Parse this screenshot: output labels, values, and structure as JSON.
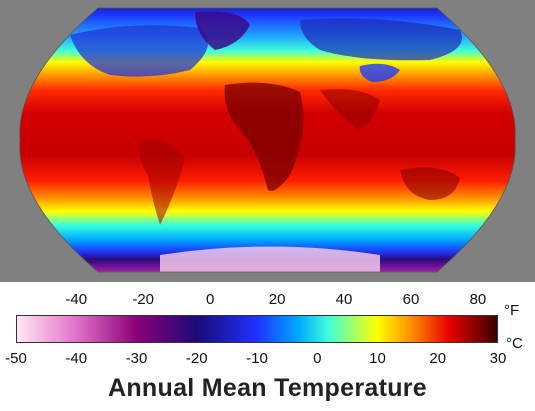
{
  "map": {
    "projection": "Robinson",
    "variable": "annual mean surface temperature",
    "background_color": "#808080"
  },
  "legend": {
    "title": "Annual Mean Temperature",
    "fahrenheit_unit": "°F",
    "celsius_unit": "°C",
    "fahrenheit_ticks": [
      "-40",
      "-20",
      "0",
      "20",
      "40",
      "60",
      "80"
    ],
    "celsius_ticks": [
      "-50",
      "-40",
      "-30",
      "-20",
      "-10",
      "0",
      "10",
      "20",
      "30"
    ],
    "colorbar_stops": [
      {
        "celsius": -50,
        "color": "#ffe6f5"
      },
      {
        "celsius": -40,
        "color": "#e070c8"
      },
      {
        "celsius": -30,
        "color": "#8a0078"
      },
      {
        "celsius": -20,
        "color": "#1c0a78"
      },
      {
        "celsius": -10,
        "color": "#1e32ff"
      },
      {
        "celsius": -3,
        "color": "#00aaff"
      },
      {
        "celsius": 2,
        "color": "#40ffd8"
      },
      {
        "celsius": 10,
        "color": "#ffff00"
      },
      {
        "celsius": 16,
        "color": "#ff8800"
      },
      {
        "celsius": 22,
        "color": "#e80000"
      },
      {
        "celsius": 30,
        "color": "#3a0000"
      }
    ]
  }
}
